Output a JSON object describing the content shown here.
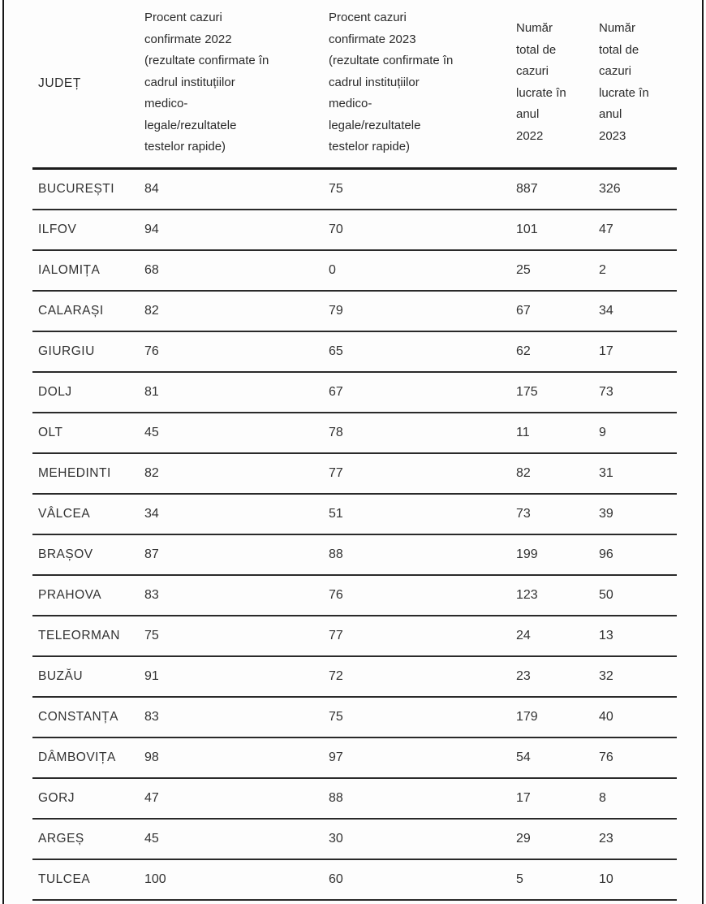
{
  "table": {
    "columns": [
      {
        "id": "judet",
        "label": "JUDEȚ"
      },
      {
        "id": "procent_2022",
        "label": "Procent cazuri\nconfirmate 2022\n(rezultate confirmate în\ncadrul instituțiilor\nmedico-\nlegale/rezultatele\ntestelor rapide)"
      },
      {
        "id": "procent_2023",
        "label": "Procent cazuri\nconfirmate 2023\n(rezultate confirmate în\ncadrul instituțiilor\nmedico-\nlegale/rezultatele\ntestelor rapide)"
      },
      {
        "id": "numar_2022",
        "label": "Număr\ntotal de\ncazuri\nlucrate în\nanul\n2022"
      },
      {
        "id": "numar_2023",
        "label": "Număr\ntotal de\ncazuri\nlucrate în\nanul\n2023"
      }
    ],
    "rows": [
      [
        "BUCUREȘTI",
        "84",
        "75",
        "887",
        "326"
      ],
      [
        "ILFOV",
        "94",
        "70",
        "101",
        "47"
      ],
      [
        "IALOMIȚA",
        "68",
        "0",
        "25",
        "2"
      ],
      [
        "CALARAȘI",
        "82",
        "79",
        "67",
        "34"
      ],
      [
        "GIURGIU",
        "76",
        "65",
        "62",
        "17"
      ],
      [
        "DOLJ",
        "81",
        "67",
        "175",
        "73"
      ],
      [
        "OLT",
        "45",
        "78",
        "11",
        "9"
      ],
      [
        "MEHEDINTI",
        "82",
        "77",
        "82",
        "31"
      ],
      [
        "VÂLCEA",
        "34",
        "51",
        "73",
        "39"
      ],
      [
        "BRAȘOV",
        "87",
        "88",
        "199",
        "96"
      ],
      [
        "PRAHOVA",
        "83",
        "76",
        "123",
        "50"
      ],
      [
        "TELEORMAN",
        "75",
        "77",
        "24",
        "13"
      ],
      [
        "BUZĂU",
        "91",
        "72",
        "23",
        "32"
      ],
      [
        "CONSTANȚA",
        "83",
        "75",
        "179",
        "40"
      ],
      [
        "DÂMBOVIȚA",
        "98",
        "97",
        "54",
        "76"
      ],
      [
        "GORJ",
        "47",
        "88",
        "17",
        "8"
      ],
      [
        "ARGEȘ",
        "45",
        "30",
        "29",
        "23"
      ],
      [
        "TULCEA",
        "100",
        "60",
        "5",
        "10"
      ]
    ]
  },
  "colors": {
    "frame_border": "#161616",
    "header_separator": "#1c1c1c",
    "row_separator": "#2a2a2a",
    "text": "#2e2e2e",
    "background": "#fdfdfd"
  },
  "chart_data": {
    "type": "table",
    "title": "",
    "columns": [
      "JUDEȚ",
      "Procent cazuri confirmate 2022 (rezultate confirmate în cadrul instituțiilor medico-legale/rezultatele testelor rapide)",
      "Procent cazuri confirmate 2023 (rezultate confirmate în cadrul instituțiilor medico-legale/rezultatele testelor rapide)",
      "Număr total de cazuri lucrate în anul 2022",
      "Număr total de cazuri lucrate în anul 2023"
    ],
    "rows": [
      [
        "BUCUREȘTI",
        84,
        75,
        887,
        326
      ],
      [
        "ILFOV",
        94,
        70,
        101,
        47
      ],
      [
        "IALOMIȚA",
        68,
        0,
        25,
        2
      ],
      [
        "CALARAȘI",
        82,
        79,
        67,
        34
      ],
      [
        "GIURGIU",
        76,
        65,
        62,
        17
      ],
      [
        "DOLJ",
        81,
        67,
        175,
        73
      ],
      [
        "OLT",
        45,
        78,
        11,
        9
      ],
      [
        "MEHEDINTI",
        82,
        77,
        82,
        31
      ],
      [
        "VÂLCEA",
        34,
        51,
        73,
        39
      ],
      [
        "BRAȘOV",
        87,
        88,
        199,
        96
      ],
      [
        "PRAHOVA",
        83,
        76,
        123,
        50
      ],
      [
        "TELEORMAN",
        75,
        77,
        24,
        13
      ],
      [
        "BUZĂU",
        91,
        72,
        23,
        32
      ],
      [
        "CONSTANȚA",
        83,
        75,
        179,
        40
      ],
      [
        "DÂMBOVIȚA",
        98,
        97,
        54,
        76
      ],
      [
        "GORJ",
        47,
        88,
        17,
        8
      ],
      [
        "ARGEȘ",
        45,
        30,
        29,
        23
      ],
      [
        "TULCEA",
        100,
        60,
        5,
        10
      ]
    ]
  }
}
